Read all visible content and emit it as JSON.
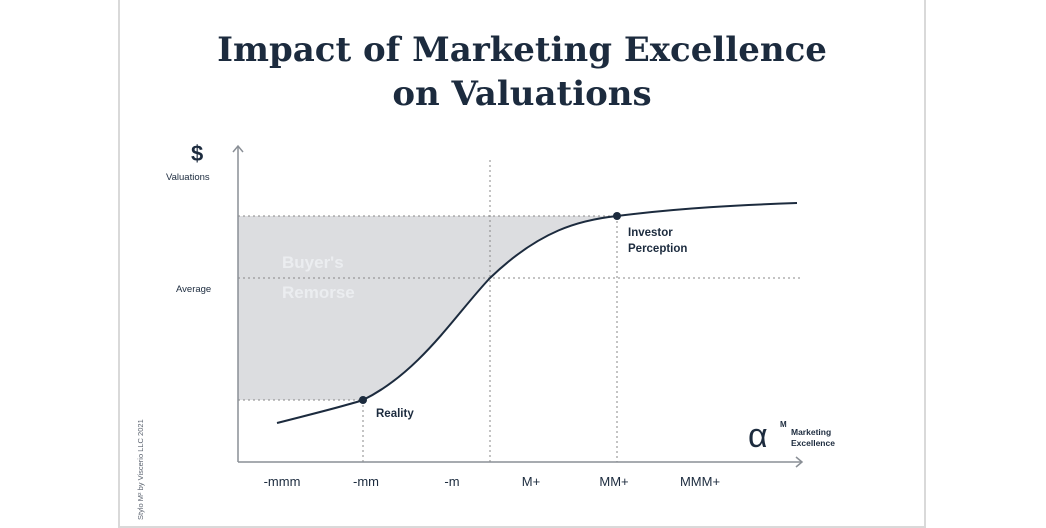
{
  "title_line1": "Impact of Marketing Excellence",
  "title_line2": "on Valuations",
  "side_note": "Stylo M² by Viscerio LLC 2021",
  "chart_data": {
    "type": "line",
    "y_axis": {
      "symbol": "$",
      "label": "Valuations",
      "tick": "Average"
    },
    "x_axis": {
      "symbol": "α",
      "superscript": "M",
      "label_line1": "Marketing",
      "label_line2": "Excellence"
    },
    "categories": [
      "-mmm",
      "-mm",
      "-m",
      "M+",
      "MM+",
      "MMM+"
    ],
    "points": [
      {
        "name": "Reality",
        "category": "-mm"
      },
      {
        "name_line1": "Investor",
        "name_line2": "Perception",
        "category": "MM+"
      }
    ],
    "shaded_region": {
      "line1": "Buyer's",
      "line2": "Remorse",
      "from": "Reality",
      "to": "Investor Perception"
    },
    "curve": "s-curve",
    "colors": {
      "curve": "#1c2b3e",
      "shade": "#dcdde0",
      "shade_text": "#ebedf0",
      "grid": "#888888"
    }
  }
}
